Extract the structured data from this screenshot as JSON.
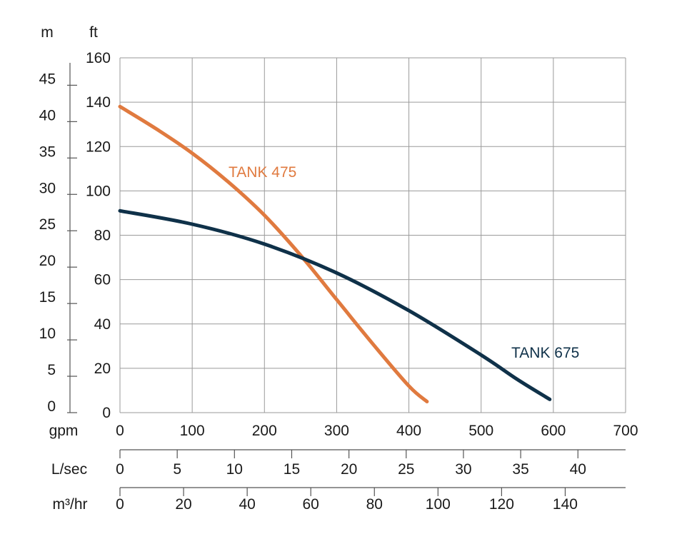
{
  "chart_data": {
    "type": "line",
    "title": "",
    "units": {
      "head_m": "m",
      "head_ft": "ft",
      "flow_gpm": "gpm",
      "flow_lsec": "L/sec",
      "flow_m3hr": "m³/hr"
    },
    "y_ft": {
      "label": "ft",
      "ticks": [
        "0",
        "20",
        "40",
        "60",
        "80",
        "100",
        "120",
        "140",
        "160"
      ],
      "range": [
        0,
        160
      ]
    },
    "y_m": {
      "label": "m",
      "ticks": [
        "0",
        "5",
        "10",
        "15",
        "20",
        "25",
        "30",
        "35",
        "40",
        "45"
      ],
      "range": [
        0,
        48.768
      ]
    },
    "x_gpm": {
      "label": "gpm",
      "ticks": [
        "0",
        "100",
        "200",
        "300",
        "400",
        "500",
        "600",
        "700"
      ],
      "range": [
        0,
        700
      ]
    },
    "x_lsec": {
      "label": "L/sec",
      "ticks": [
        "0",
        "5",
        "10",
        "15",
        "20",
        "25",
        "30",
        "35",
        "40"
      ]
    },
    "x_m3hr": {
      "label": "m³/hr",
      "ticks": [
        "0",
        "20",
        "40",
        "60",
        "80",
        "100",
        "120",
        "140"
      ]
    },
    "grid": true,
    "series": [
      {
        "name": "TANK 475",
        "color": "#e07a3f",
        "x": [
          0,
          50,
          100,
          150,
          200,
          250,
          300,
          350,
          400,
          425
        ],
        "y": [
          138,
          128,
          117,
          104,
          89,
          71,
          51,
          31,
          12,
          5
        ]
      },
      {
        "name": "TANK 675",
        "color": "#0f3149",
        "x": [
          0,
          100,
          200,
          300,
          400,
          500,
          550,
          595
        ],
        "y": [
          91,
          85,
          76,
          63,
          46,
          26,
          15,
          6
        ]
      }
    ]
  }
}
